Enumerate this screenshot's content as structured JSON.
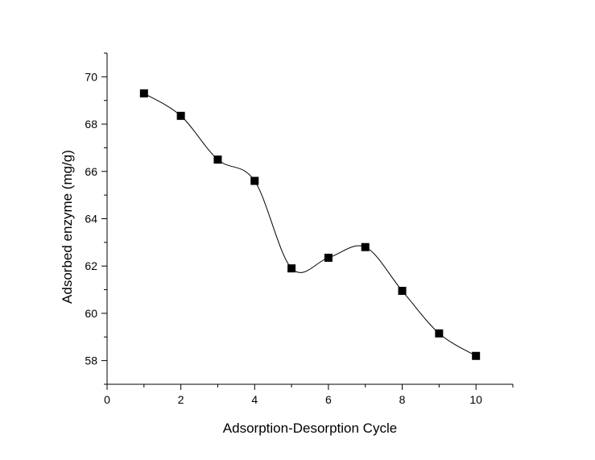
{
  "chart_data": {
    "type": "scatter",
    "xlabel": "Adsorption-Desorption Cycle",
    "ylabel": "Adsorbed enzyme (mg/g)",
    "xlim": [
      0,
      11
    ],
    "ylim": [
      57,
      71
    ],
    "x_ticks": [
      0,
      2,
      4,
      6,
      8,
      10
    ],
    "y_ticks": [
      58,
      60,
      62,
      64,
      66,
      68,
      70
    ],
    "grid": false,
    "legend": "none",
    "series": [
      {
        "marker": "filled-square",
        "color": "#000000",
        "fit_line": "smooth-spline",
        "x": [
          1,
          2,
          3,
          4,
          5,
          6,
          7,
          8,
          9,
          10
        ],
        "y": [
          69.3,
          68.35,
          66.5,
          65.6,
          61.9,
          62.35,
          62.8,
          60.95,
          59.15,
          58.2
        ]
      }
    ]
  }
}
